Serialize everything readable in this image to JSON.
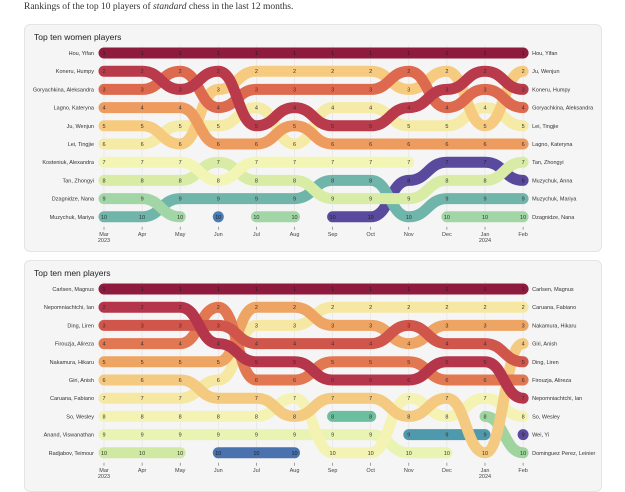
{
  "intro": {
    "before": "Rankings of the top 10 players of ",
    "em": "standard",
    "after": " chess in the last 12 months."
  },
  "chart_data": [
    {
      "type": "bump",
      "title": "Top ten women players",
      "x": [
        "Mar",
        "Apr",
        "May",
        "Jun",
        "Jul",
        "Aug",
        "Sep",
        "Oct",
        "Nov",
        "Dec",
        "Jan",
        "Feb"
      ],
      "year_labels": {
        "Mar": "2023",
        "Jan": "2024"
      },
      "ylim": [
        1,
        10
      ],
      "series": [
        {
          "name": "Hou, Yifan",
          "color": "#8e1a3e",
          "ranks": [
            1,
            1,
            1,
            1,
            1,
            1,
            1,
            1,
            1,
            1,
            1,
            1
          ]
        },
        {
          "name": "Koneru, Humpy",
          "color": "#b83a4b",
          "ranks": [
            2,
            2,
            3,
            2,
            5,
            4,
            5,
            5,
            4,
            3,
            2,
            3
          ]
        },
        {
          "name": "Goryachkina, Aleksandra",
          "color": "#dd6a4f",
          "ranks": [
            3,
            3,
            2,
            4,
            3,
            3,
            3,
            3,
            2,
            4,
            3,
            4
          ]
        },
        {
          "name": "Lagno, Kateryna",
          "color": "#ee9b60",
          "ranks": [
            4,
            4,
            4,
            6,
            6,
            5,
            6,
            6,
            6,
            6,
            6,
            6
          ]
        },
        {
          "name": "Ju, Wenjun",
          "color": "#f6cb80",
          "ranks": [
            5,
            5,
            6,
            3,
            2,
            2,
            2,
            2,
            3,
            2,
            5,
            2
          ]
        },
        {
          "name": "Lei, Tingjie",
          "color": "#f5eaa6",
          "ranks": [
            6,
            6,
            5,
            5,
            4,
            6,
            4,
            4,
            5,
            5,
            4,
            5
          ]
        },
        {
          "name": "Kosteniuk, Alexandra",
          "color": "#f2f5b4",
          "ranks": [
            7,
            7,
            7,
            8,
            7,
            7,
            7,
            7,
            7,
            null,
            null,
            null
          ]
        },
        {
          "name": "Tan, Zhongyi",
          "color": "#d8eca5",
          "ranks": [
            8,
            8,
            8,
            7,
            8,
            8,
            9,
            9,
            9,
            8,
            8,
            7
          ]
        },
        {
          "name": "Dzagnidze, Nana",
          "color": "#a3d6a6",
          "ranks": [
            9,
            9,
            10,
            null,
            10,
            10,
            null,
            null,
            null,
            10,
            10,
            10
          ]
        },
        {
          "name": "Muzychuk, Mariya",
          "color": "#6fb5aa",
          "ranks": [
            10,
            10,
            9,
            9,
            9,
            9,
            8,
            8,
            10,
            9,
            9,
            9
          ]
        },
        {
          "name": "",
          "color": "#4a7db6",
          "ranks": [
            null,
            null,
            null,
            10,
            null,
            null,
            null,
            null,
            null,
            null,
            null,
            null
          ]
        },
        {
          "name": "Muzychuk, Anna",
          "color": "#5a4a9e",
          "ranks": [
            null,
            null,
            null,
            null,
            null,
            null,
            10,
            10,
            8,
            7,
            7,
            8
          ]
        }
      ]
    },
    {
      "type": "bump",
      "title": "Top ten men players",
      "x": [
        "Mar",
        "Apr",
        "May",
        "Jun",
        "Jul",
        "Aug",
        "Sep",
        "Oct",
        "Nov",
        "Dec",
        "Jan",
        "Feb"
      ],
      "year_labels": {
        "Mar": "2023",
        "Jan": "2024"
      },
      "ylim": [
        1,
        10
      ],
      "series": [
        {
          "name": "Carlsen, Magnus",
          "color": "#8e1a3e",
          "ranks": [
            1,
            1,
            1,
            1,
            1,
            1,
            1,
            1,
            1,
            1,
            1,
            1
          ]
        },
        {
          "name": "Nepomniachtchi, Ian",
          "color": "#b5354b",
          "ranks": [
            2,
            2,
            2,
            4,
            5,
            5,
            6,
            6,
            6,
            5,
            5,
            7
          ]
        },
        {
          "name": "Ding, Liren",
          "color": "#d0564c",
          "ranks": [
            3,
            3,
            3,
            3,
            4,
            4,
            4,
            4,
            3,
            4,
            4,
            5
          ]
        },
        {
          "name": "Firouzja, Alireza",
          "color": "#e27852",
          "ranks": [
            4,
            4,
            4,
            2,
            6,
            6,
            5,
            5,
            5,
            6,
            6,
            6
          ]
        },
        {
          "name": "Nakamura, Hikaru",
          "color": "#eea463",
          "ranks": [
            5,
            5,
            5,
            5,
            2,
            2,
            3,
            3,
            4,
            3,
            3,
            3
          ]
        },
        {
          "name": "Giri, Anish",
          "color": "#f4c980",
          "ranks": [
            6,
            6,
            6,
            7,
            7,
            8,
            7,
            7,
            8,
            7,
            10,
            4
          ]
        },
        {
          "name": "Caruana, Fabiano",
          "color": "#f6e7a2",
          "ranks": [
            7,
            7,
            7,
            6,
            3,
            3,
            2,
            2,
            2,
            2,
            2,
            2
          ]
        },
        {
          "name": "So, Wesley",
          "color": "#f5f3b3",
          "ranks": [
            8,
            8,
            8,
            8,
            8,
            7,
            10,
            10,
            7,
            8,
            7,
            8
          ]
        },
        {
          "name": "Anand, Viswanathan",
          "color": "#eaf4b2",
          "ranks": [
            9,
            9,
            9,
            9,
            9,
            9,
            9,
            9,
            10,
            10,
            null,
            null
          ]
        },
        {
          "name": "Radjabov, Teimour",
          "color": "#d0e9a2",
          "ranks": [
            10,
            10,
            10,
            null,
            null,
            null,
            null,
            null,
            null,
            null,
            null,
            null
          ]
        },
        {
          "name": "",
          "color": "#4a72ae",
          "ranks": [
            null,
            null,
            null,
            10,
            10,
            10,
            null,
            null,
            null,
            null,
            null,
            null
          ]
        },
        {
          "name": "",
          "color": "#6bbf9f",
          "ranks": [
            null,
            null,
            null,
            null,
            null,
            null,
            8,
            8,
            null,
            null,
            null,
            null
          ]
        },
        {
          "name": "",
          "color": "#4f99ad",
          "ranks": [
            null,
            null,
            null,
            null,
            null,
            null,
            null,
            null,
            9,
            9,
            9,
            null
          ]
        },
        {
          "name": "Dominguez Perez, Leinier",
          "color": "#9fd49f",
          "ranks": [
            null,
            null,
            null,
            null,
            null,
            null,
            null,
            null,
            null,
            null,
            8,
            10
          ]
        },
        {
          "name": "Wei, Yi",
          "color": "#5a4ba0",
          "ranks": [
            null,
            null,
            null,
            null,
            null,
            null,
            null,
            null,
            null,
            null,
            null,
            9
          ]
        }
      ]
    }
  ]
}
